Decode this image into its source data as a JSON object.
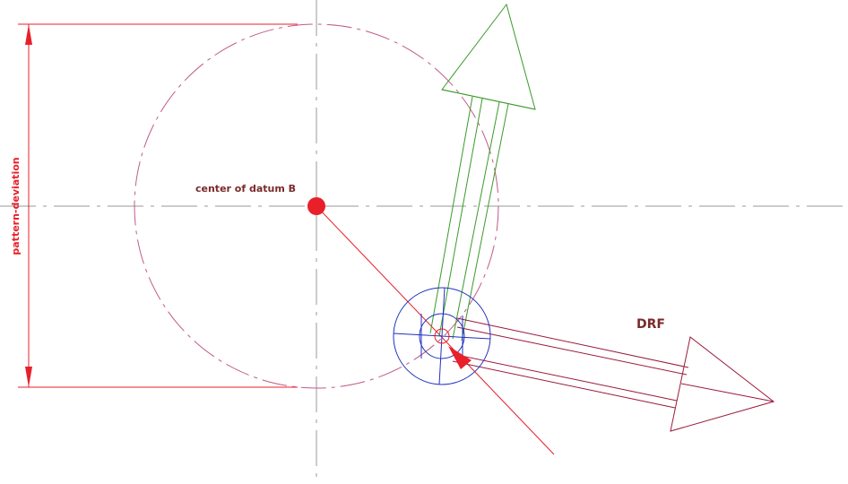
{
  "labels": {
    "datum_center": "center of datum B",
    "pattern_deviation": "pattern-deviation",
    "drf": "DRF"
  }
}
